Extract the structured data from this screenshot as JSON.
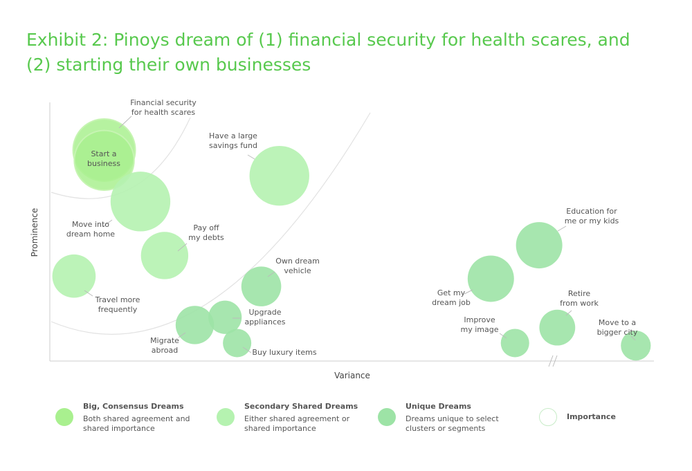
{
  "title": "Exhibit 2: Pinoys dream of (1) financial security for health scares, and (2) starting their own businesses",
  "colors": {
    "title": "#58c94e",
    "big": "#a9f08f",
    "secondary": "#b5f2b0",
    "unique": "#9de3a6",
    "importance_stroke": "#c8ecc8",
    "axis": "#cccccc"
  },
  "chart_data": {
    "type": "scatter",
    "xlabel": "Variance",
    "ylabel": "Prominence",
    "x_axis_break": true,
    "legend_position": "bottom",
    "points": [
      {
        "label": "Financial security for health scares",
        "category": "Big, Consensus Dreams",
        "x": 0.09,
        "y": 0.82,
        "size": 1.0
      },
      {
        "label": "Start a business",
        "category": "Big, Consensus Dreams",
        "x": 0.09,
        "y": 0.78,
        "size": 0.95
      },
      {
        "label": "Have a large savings fund",
        "category": "Secondary Shared Dreams",
        "x": 0.38,
        "y": 0.72,
        "size": 0.95
      },
      {
        "label": "Move into dream home",
        "category": "Secondary Shared Dreams",
        "x": 0.15,
        "y": 0.62,
        "size": 0.95
      },
      {
        "label": "Pay off my debts",
        "category": "Secondary Shared Dreams",
        "x": 0.19,
        "y": 0.41,
        "size": 0.7
      },
      {
        "label": "Travel more frequently",
        "category": "Secondary Shared Dreams",
        "x": 0.04,
        "y": 0.33,
        "size": 0.62
      },
      {
        "label": "Own dream vehicle",
        "category": "Unique Dreams",
        "x": 0.35,
        "y": 0.29,
        "size": 0.55
      },
      {
        "label": "Upgrade appliances",
        "category": "Unique Dreams",
        "x": 0.29,
        "y": 0.17,
        "size": 0.42
      },
      {
        "label": "Migrate abroad",
        "category": "Unique Dreams",
        "x": 0.24,
        "y": 0.14,
        "size": 0.52
      },
      {
        "label": "Buy luxury items",
        "category": "Unique Dreams",
        "x": 0.31,
        "y": 0.07,
        "size": 0.32
      },
      {
        "label": "Education for me or my kids",
        "category": "Unique Dreams",
        "x": 0.81,
        "y": 0.45,
        "size": 0.68
      },
      {
        "label": "Get my dream job",
        "category": "Unique Dreams",
        "x": 0.73,
        "y": 0.32,
        "size": 0.68
      },
      {
        "label": "Retire from work",
        "category": "Unique Dreams",
        "x": 0.84,
        "y": 0.13,
        "size": 0.47
      },
      {
        "label": "Improve my image",
        "category": "Unique Dreams",
        "x": 0.77,
        "y": 0.07,
        "size": 0.32
      },
      {
        "label": "Move to a bigger city",
        "category": "Unique Dreams",
        "x": 0.97,
        "y": 0.06,
        "size": 0.35
      }
    ]
  },
  "legend": [
    {
      "title": "Big, Consensus Dreams",
      "desc": "Both shared agreement and shared importance",
      "fill": "#a9f08f",
      "stroke": "none"
    },
    {
      "title": "Secondary Shared Dreams",
      "desc": "Either shared agreement or shared importance",
      "fill": "#b5f2b0",
      "stroke": "none"
    },
    {
      "title": "Unique Dreams",
      "desc": "Dreams unique to select clusters or segments",
      "fill": "#9de3a6",
      "stroke": "none"
    },
    {
      "title": "Importance",
      "desc": "",
      "fill": "#ffffff",
      "stroke": "#c8ecc8"
    }
  ]
}
